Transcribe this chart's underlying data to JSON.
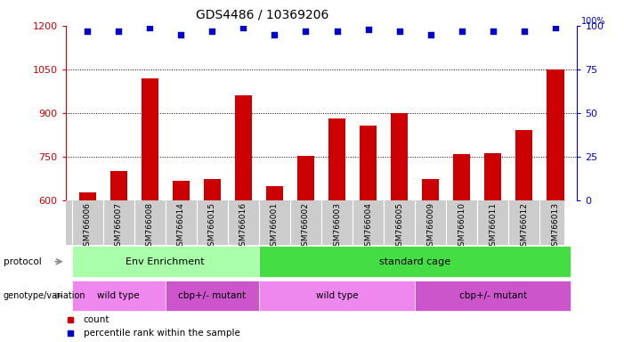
{
  "title": "GDS4486 / 10369206",
  "samples": [
    "GSM766006",
    "GSM766007",
    "GSM766008",
    "GSM766014",
    "GSM766015",
    "GSM766016",
    "GSM766001",
    "GSM766002",
    "GSM766003",
    "GSM766004",
    "GSM766005",
    "GSM766009",
    "GSM766010",
    "GSM766011",
    "GSM766012",
    "GSM766013"
  ],
  "counts": [
    625,
    700,
    1020,
    665,
    672,
    960,
    648,
    752,
    880,
    855,
    900,
    672,
    758,
    762,
    840,
    1050
  ],
  "percentile_ranks": [
    97,
    97,
    99,
    95,
    97,
    99,
    95,
    97,
    97,
    98,
    97,
    95,
    97,
    97,
    97,
    99
  ],
  "ylim_left": [
    600,
    1200
  ],
  "ylim_right": [
    0,
    100
  ],
  "yticks_left": [
    600,
    750,
    900,
    1050,
    1200
  ],
  "yticks_right": [
    0,
    25,
    50,
    75,
    100
  ],
  "bar_color": "#cc0000",
  "dot_color": "#0000cc",
  "proto_regions": [
    {
      "text": "Env Enrichment",
      "start": 0,
      "end": 5,
      "color": "#aaffaa"
    },
    {
      "text": "standard cage",
      "start": 6,
      "end": 15,
      "color": "#44dd44"
    }
  ],
  "geno_regions": [
    {
      "text": "wild type",
      "start": 0,
      "end": 2,
      "color": "#ee88ee"
    },
    {
      "text": "cbp+/- mutant",
      "start": 3,
      "end": 5,
      "color": "#cc55cc"
    },
    {
      "text": "wild type",
      "start": 6,
      "end": 10,
      "color": "#ee88ee"
    },
    {
      "text": "cbp+/- mutant",
      "start": 11,
      "end": 15,
      "color": "#cc55cc"
    }
  ],
  "sample_bg_color": "#cccccc",
  "label_color_protocol": "black",
  "label_color_genotype": "black"
}
